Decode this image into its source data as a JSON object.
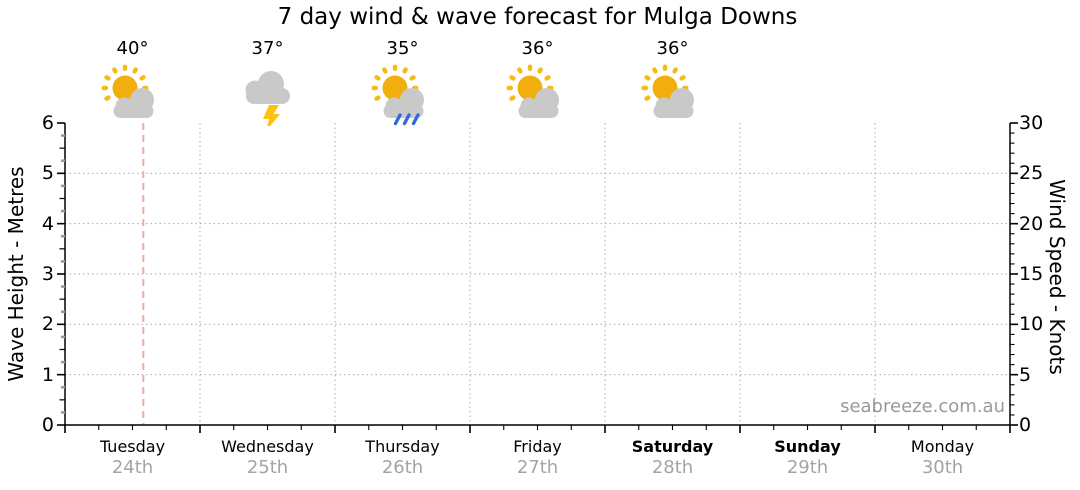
{
  "title": "7 day wind & wave forecast for Mulga Downs",
  "watermark": "seabreeze.com.au",
  "chart_data": {
    "type": "line",
    "title": "7 day wind & wave forecast for Mulga Downs",
    "grid": "dotted",
    "legend": null,
    "series": [],
    "x_axis": {
      "days": [
        {
          "label": "Tuesday",
          "date": "24th",
          "bold": false
        },
        {
          "label": "Wednesday",
          "date": "25th",
          "bold": false
        },
        {
          "label": "Thursday",
          "date": "26th",
          "bold": false
        },
        {
          "label": "Friday",
          "date": "27th",
          "bold": false
        },
        {
          "label": "Saturday",
          "date": "28th",
          "bold": true
        },
        {
          "label": "Sunday",
          "date": "29th",
          "bold": true
        },
        {
          "label": "Monday",
          "date": "30th",
          "bold": false
        }
      ],
      "minor_ticks_per_day": 4
    },
    "left_axis": {
      "label": "Wave Height - Metres",
      "min": 0,
      "max": 6,
      "major_ticks": [
        0,
        1,
        2,
        3,
        4,
        5,
        6
      ],
      "minor_step": 0.25,
      "gridlines": [
        1,
        2,
        3,
        4,
        5
      ]
    },
    "right_axis": {
      "label": "Wind Speed - Knots",
      "min": 0,
      "max": 30,
      "major_ticks": [
        0,
        5,
        10,
        15,
        20,
        25,
        30
      ],
      "minor_step": 1
    },
    "forecast": [
      {
        "day": "Tuesday",
        "temperature": "40°",
        "icon": "sun-cloud"
      },
      {
        "day": "Wednesday",
        "temperature": "37°",
        "icon": "storm-cloud-lightning"
      },
      {
        "day": "Thursday",
        "temperature": "35°",
        "icon": "sun-cloud-rain"
      },
      {
        "day": "Friday",
        "temperature": "36°",
        "icon": "sun-cloud"
      },
      {
        "day": "Saturday",
        "temperature": "36°",
        "icon": "sun-cloud"
      }
    ],
    "now_marker": {
      "day_index": 0,
      "fraction_of_day": 0.58
    }
  },
  "colors": {
    "sun": "#F2AE0E",
    "sun_rays": "#F6BC16",
    "cloud": "#C9C9C9",
    "lightning": "#FFC20E",
    "rain": "#2E6BD8",
    "now_line": "#F4ACA5",
    "grid": "#AAAAAA",
    "axis": "#000000",
    "minor_tick_gray": "#9A9A9A",
    "date_text": "#A4A4A4",
    "watermark_text": "#999999"
  }
}
